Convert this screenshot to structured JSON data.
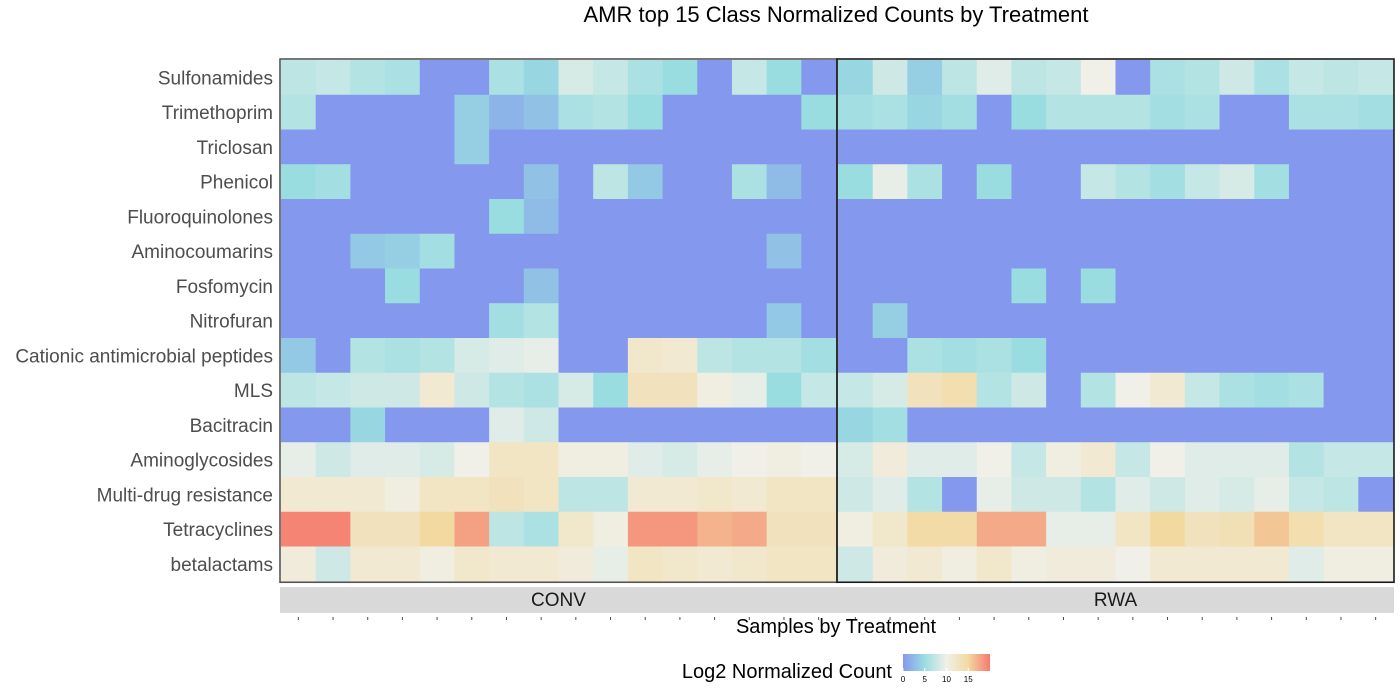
{
  "chart_data": {
    "type": "heatmap",
    "title": "AMR top 15 Class Normalized Counts by Treatment",
    "xlabel": "Samples by Treatment",
    "ylabel": "",
    "rows": [
      "Sulfonamides",
      "Trimethoprim",
      "Triclosan",
      "Phenicol",
      "Fluoroquinolones",
      "Aminocoumarins",
      "Fosfomycin",
      "Nitrofuran",
      "Cationic antimicrobial peptides",
      "MLS",
      "Bacitracin",
      "Aminoglycosides",
      "Multi-drug resistance",
      "Tetracyclines",
      "betalactams"
    ],
    "legend": {
      "title": "Log2 Normalized Count",
      "ticks": [
        0,
        5,
        10,
        15
      ],
      "range": [
        0,
        20
      ],
      "colors": [
        "#8499ED",
        "#9ADDE1",
        "#F0F0E8",
        "#F2D9A0",
        "#F67A6F"
      ]
    },
    "panels": [
      {
        "name": "CONV",
        "values": [
          [
            7,
            7.5,
            6.5,
            6,
            0,
            0,
            6,
            4.5,
            8.5,
            7.5,
            6,
            5,
            0,
            7.5,
            5,
            0
          ],
          [
            6.5,
            0,
            0,
            0,
            0,
            4,
            2,
            3,
            6,
            6.5,
            5,
            0,
            0,
            0,
            0,
            5
          ],
          [
            0,
            0,
            0,
            0,
            0,
            4,
            0,
            0,
            0,
            0,
            0,
            0,
            0,
            0,
            0,
            0
          ],
          [
            5,
            5.5,
            0,
            0,
            0,
            0,
            0,
            3,
            0,
            7,
            3.5,
            0,
            0,
            6,
            2.5,
            0
          ],
          [
            0,
            0,
            0,
            0,
            0,
            0,
            5,
            2.5,
            0,
            0,
            0,
            0,
            0,
            0,
            0,
            0
          ],
          [
            0,
            0,
            3.5,
            4,
            5.5,
            0,
            0,
            0,
            0,
            0,
            0,
            0,
            0,
            0,
            3,
            0
          ],
          [
            0,
            0,
            0,
            5,
            0,
            0,
            0,
            3,
            0,
            0,
            0,
            0,
            0,
            0,
            0,
            0
          ],
          [
            0,
            0,
            0,
            0,
            0,
            0,
            5.5,
            6.5,
            0,
            0,
            0,
            0,
            0,
            0,
            3.5,
            0
          ],
          [
            3.5,
            0,
            6.5,
            6,
            6.5,
            8.5,
            9,
            9.5,
            0,
            0,
            12,
            11.5,
            7,
            6.5,
            6.5,
            5.5
          ],
          [
            7,
            7.5,
            8,
            8,
            11.5,
            8,
            6.5,
            6,
            8.5,
            5,
            13,
            13,
            10.5,
            9.5,
            5,
            7.5
          ],
          [
            0,
            0,
            4.5,
            0,
            0,
            0,
            9,
            8,
            0,
            0,
            0,
            0,
            0,
            0,
            0,
            0
          ],
          [
            9.5,
            8,
            9,
            9,
            8.5,
            10,
            12.5,
            12.5,
            10.5,
            10.5,
            9,
            8.5,
            9.5,
            10,
            10.5,
            10
          ],
          [
            11.5,
            11.5,
            11.5,
            10.5,
            12.5,
            12.5,
            13,
            12.5,
            7,
            7,
            11.5,
            11.5,
            12,
            11.5,
            12.5,
            12.5
          ],
          [
            19.5,
            19.5,
            13,
            13,
            15,
            18,
            7,
            6,
            12,
            10.5,
            18.5,
            18.5,
            17,
            17.5,
            13,
            13
          ],
          [
            11,
            8,
            11.5,
            11.5,
            10.5,
            12,
            11.5,
            11.5,
            11,
            9.5,
            12.5,
            12,
            11.5,
            12,
            12.5,
            12.5
          ]
        ]
      },
      {
        "name": "RWA",
        "values": [
          [
            4.5,
            8,
            4,
            7,
            9,
            7,
            7.5,
            10,
            0,
            6,
            6.5,
            8,
            6,
            7.5,
            7,
            7.5
          ],
          [
            5.5,
            6,
            4.5,
            5.5,
            0,
            5,
            6.5,
            6.5,
            6.5,
            5.5,
            6,
            0,
            0,
            6,
            6,
            5.5
          ],
          [
            0,
            0,
            0,
            0,
            0,
            0,
            0,
            0,
            0,
            0,
            0,
            0,
            0,
            0,
            0,
            0
          ],
          [
            5,
            9.5,
            6,
            0,
            5,
            0,
            0,
            7.5,
            6.5,
            5.5,
            7.5,
            8.5,
            5.5,
            0,
            0,
            0
          ],
          [
            0,
            0,
            0,
            0,
            0,
            0,
            0,
            0,
            0,
            0,
            0,
            0,
            0,
            0,
            0,
            0
          ],
          [
            0,
            0,
            0,
            0,
            0,
            0,
            0,
            0,
            0,
            0,
            0,
            0,
            0,
            0,
            0,
            0
          ],
          [
            0,
            0,
            0,
            0,
            0,
            5,
            0,
            5,
            0,
            0,
            0,
            0,
            0,
            0,
            0,
            0
          ],
          [
            0,
            4,
            0,
            0,
            0,
            0,
            0,
            0,
            0,
            0,
            0,
            0,
            0,
            0,
            0,
            0
          ],
          [
            0,
            0,
            6,
            5.5,
            6,
            5,
            0,
            0,
            0,
            0,
            0,
            0,
            0,
            0,
            0,
            0
          ],
          [
            7.5,
            8.5,
            13,
            14,
            6.5,
            8,
            0,
            6.5,
            10,
            11.5,
            7.5,
            6,
            5.5,
            6,
            0,
            0
          ],
          [
            4.5,
            5.5,
            0,
            0,
            0,
            0,
            0,
            0,
            0,
            0,
            0,
            0,
            0,
            0,
            0,
            0
          ],
          [
            8.5,
            11,
            9,
            9,
            10,
            7.5,
            10.5,
            11.5,
            7.5,
            10,
            9,
            9,
            9,
            6.5,
            7.5,
            7.5
          ],
          [
            8,
            9,
            6.5,
            0,
            9.5,
            8,
            8,
            6.5,
            9,
            8,
            9,
            8.5,
            9.5,
            7.5,
            7,
            0
          ],
          [
            10.5,
            12,
            14.5,
            14.5,
            17.5,
            17.5,
            9.5,
            9.5,
            12.5,
            15,
            13,
            13.5,
            16,
            14,
            12.5,
            12.5
          ],
          [
            8,
            11,
            11.5,
            10.5,
            12,
            10.5,
            11,
            11,
            10,
            11.5,
            11.5,
            11.5,
            11.5,
            9,
            10.5,
            10.5
          ]
        ]
      }
    ]
  }
}
